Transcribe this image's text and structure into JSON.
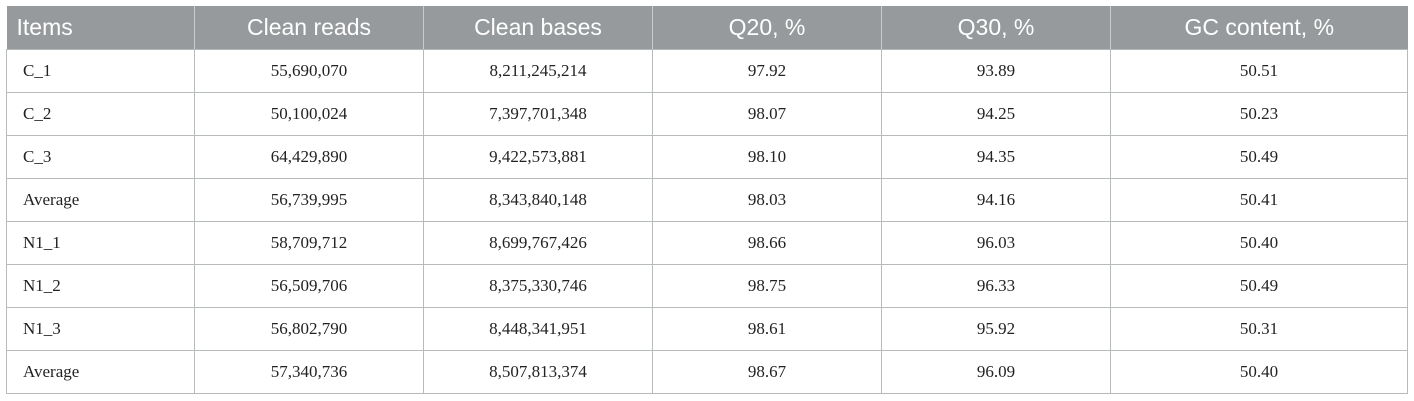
{
  "table": {
    "headers": [
      "Items",
      "Clean reads",
      "Clean bases",
      "Q20, %",
      "Q30, %",
      "GC content, %"
    ],
    "rows": [
      [
        "C_1",
        "55,690,070",
        "8,211,245,214",
        "97.92",
        "93.89",
        "50.51"
      ],
      [
        "C_2",
        "50,100,024",
        "7,397,701,348",
        "98.07",
        "94.25",
        "50.23"
      ],
      [
        "C_3",
        "64,429,890",
        "9,422,573,881",
        "98.10",
        "94.35",
        "50.49"
      ],
      [
        "Average",
        "56,739,995",
        "8,343,840,148",
        "98.03",
        "94.16",
        "50.41"
      ],
      [
        "N1_1",
        "58,709,712",
        "8,699,767,426",
        "98.66",
        "96.03",
        "50.40"
      ],
      [
        "N1_2",
        "56,509,706",
        "8,375,330,746",
        "98.75",
        "96.33",
        "50.49"
      ],
      [
        "N1_3",
        "56,802,790",
        "8,448,341,951",
        "98.61",
        "95.92",
        "50.31"
      ],
      [
        "Average",
        "57,340,736",
        "8,507,813,374",
        "98.67",
        "96.09",
        "50.40"
      ]
    ]
  }
}
